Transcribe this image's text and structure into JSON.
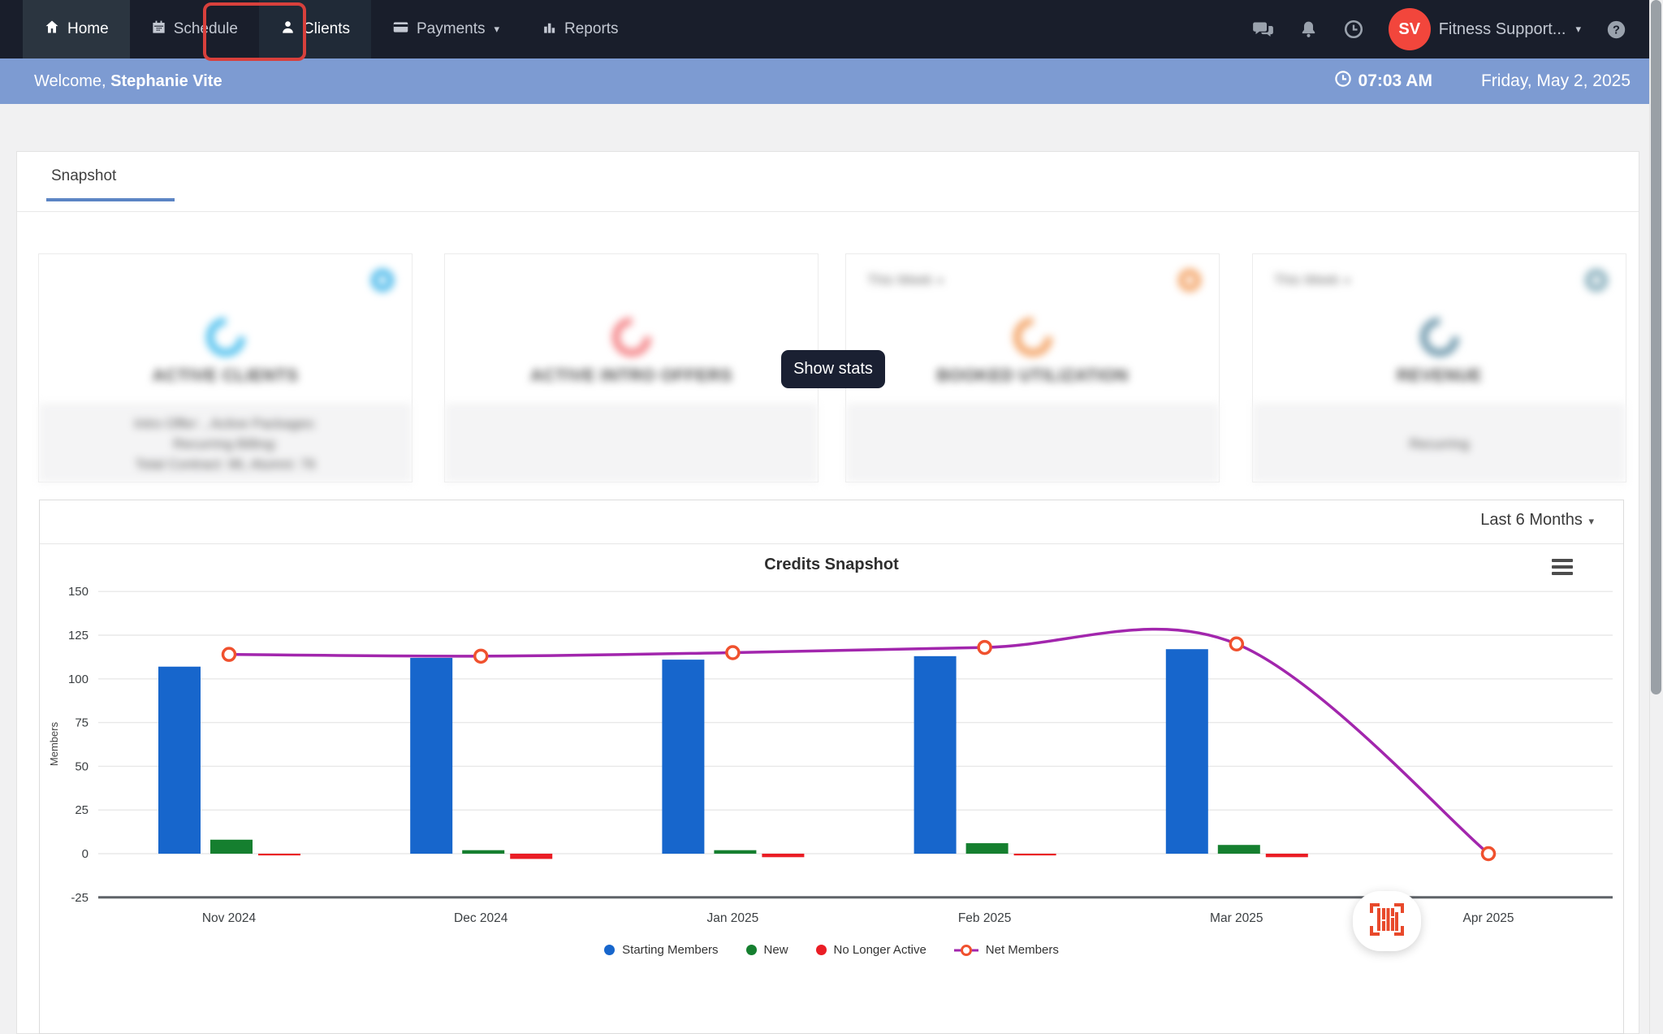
{
  "navbar": {
    "items": [
      {
        "label": "Home",
        "icon": "home-icon",
        "active": true
      },
      {
        "label": "Schedule",
        "icon": "calendar-icon",
        "active": false
      },
      {
        "label": "Clients",
        "icon": "person-icon",
        "active": false,
        "annotated": true
      },
      {
        "label": "Payments",
        "icon": "credit-card-icon",
        "active": false,
        "has_caret": true
      },
      {
        "label": "Reports",
        "icon": "bar-chart-icon",
        "active": false
      }
    ],
    "action_icons": [
      "chat-icon",
      "bell-icon",
      "clock-icon",
      "help-icon"
    ],
    "account": {
      "initials": "SV",
      "name": "Fitness Support...",
      "avatar_color": "#f2463c"
    }
  },
  "annotation": {
    "target": "Clients",
    "color": "#d8403c"
  },
  "welcome_bar": {
    "greeting": "Welcome,",
    "user_name": "Stephanie Vite",
    "time": "07:03 AM",
    "date": "Friday, May 2, 2025",
    "background": "#7d9bd2"
  },
  "tabs": {
    "active": "Snapshot"
  },
  "stat_cards": [
    {
      "title": "ACTIVE CLIENTS",
      "period": "",
      "accent": "#45b7ea",
      "spinner_color": "#4fc0ee",
      "footer_lines": [
        "Intro Offer: , Active Packages:",
        "Recurring Billing:",
        "Total Contract: 96, Alumni: 76"
      ]
    },
    {
      "title": "ACTIVE INTRO OFFERS",
      "period": "",
      "accent": "",
      "spinner_color": "#f48286",
      "footer_lines": []
    },
    {
      "title": "BOOKED UTILIZATION",
      "period": "This Week",
      "accent": "#f3a366",
      "spinner_color": "#f3a366",
      "footer_lines": []
    },
    {
      "title": "REVENUE",
      "period": "This Week",
      "accent": "#87aebc",
      "spinner_color": "#6e98ac",
      "footer_lines": [
        "Recurring"
      ]
    }
  ],
  "overlay": {
    "show_stats": "Show stats"
  },
  "chart": {
    "range_selector": "Last 6 Months",
    "menu_icon": "hamburger-icon",
    "chart_data": {
      "type": "bar",
      "title": "Credits Snapshot",
      "ylabel": "Members",
      "categories": [
        "Nov 2024",
        "Dec 2024",
        "Jan 2025",
        "Feb 2025",
        "Mar 2025",
        "Apr 2025"
      ],
      "series": [
        {
          "name": "Starting Members",
          "type": "bar",
          "color": "#1766cc",
          "values": [
            107,
            112,
            111,
            113,
            117,
            0
          ]
        },
        {
          "name": "New",
          "type": "bar",
          "color": "#157f2f",
          "values": [
            8,
            2,
            2,
            6,
            5,
            0
          ]
        },
        {
          "name": "No Longer Active",
          "type": "bar",
          "color": "#ea1d25",
          "values": [
            -1,
            -3,
            -2,
            -1,
            -2,
            0
          ]
        },
        {
          "name": "Net Members",
          "type": "line",
          "color": "#a226ad",
          "marker_color": "#f0512e",
          "values": [
            114,
            113,
            115,
            118,
            120,
            0
          ]
        }
      ],
      "yticks": [
        150,
        125,
        100,
        75,
        50,
        25,
        0,
        -25
      ],
      "ylim": [
        -25,
        150
      ],
      "grid": true,
      "legend_position": "bottom"
    }
  },
  "widgets": {
    "scan_button_icon": "barcode-scan-icon"
  }
}
